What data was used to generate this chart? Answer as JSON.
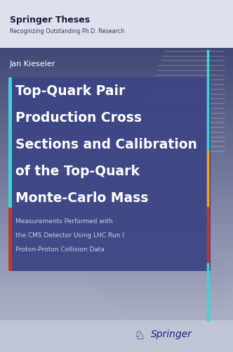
{
  "bg_top_color": "#2e3566",
  "bg_bottom_color": "#b8bdd0",
  "series_title": "Springer Theses",
  "series_subtitle": "Recognizing Outstanding Ph.D. Research",
  "author": "Jan Kieseler",
  "title_line1": "Top-Quark Pair",
  "title_line2": "Production Cross",
  "title_line3": "Sections and Calibration",
  "title_line4": "of the Top-Quark",
  "title_line5": "Monte-Carlo Mass",
  "subtitle_line1": "Measurements Performed with",
  "subtitle_line2": "the CMS Detector Using LHC Run I",
  "subtitle_line3": "Proton-Proton Collision Data",
  "publisher": "Springer",
  "cyan_color": "#3dd4d8",
  "orange_color": "#f5a623",
  "red_color": "#c0392b",
  "title_box_color": "#3d4585",
  "header_bg": "#dce0ec",
  "springer_color": "#1a237e",
  "text_dark": "#1a1a3a",
  "text_medium": "#3a3a60"
}
